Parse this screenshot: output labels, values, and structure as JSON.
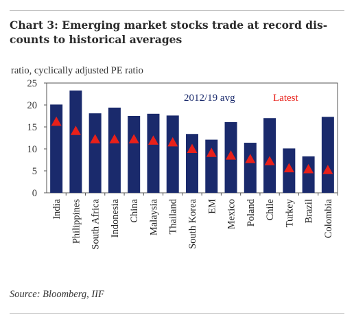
{
  "title": "Chart 3: Emerging market stocks trade at record dis- counts to historical averages",
  "title_lines": [
    "Chart 3: Emerging market stocks trade at record dis-",
    "counts to historical averages"
  ],
  "subtitle": "ratio, cyclically adjusted PE ratio",
  "source": "Source: Bloomberg, IIF",
  "chart_data": {
    "type": "bar",
    "categories": [
      "India",
      "Philippines",
      "South Africa",
      "Indonesia",
      "China",
      "Malaysia",
      "Thailand",
      "South Korea",
      "EM",
      "Mexico",
      "Poland",
      "Chile",
      "Turkey",
      "Brazil",
      "Colombia"
    ],
    "series": [
      {
        "name": "2012/19 avg",
        "type": "bar",
        "color": "#1a2a6c",
        "values": [
          20.1,
          23.3,
          18.1,
          19.4,
          17.5,
          18.0,
          17.6,
          13.4,
          12.1,
          16.1,
          11.4,
          17.0,
          10.1,
          8.3,
          17.3
        ]
      },
      {
        "name": "Latest",
        "type": "marker",
        "marker": "triangle",
        "color": "#e8201a",
        "values": [
          16.2,
          14.1,
          12.2,
          12.2,
          12.2,
          11.9,
          11.5,
          10.0,
          9.1,
          8.5,
          7.7,
          7.2,
          5.6,
          5.4,
          5.2
        ]
      }
    ],
    "ylim": [
      0,
      25
    ],
    "yticks": [
      0,
      5,
      10,
      15,
      20,
      25
    ],
    "xlabel": "",
    "ylabel": "",
    "legend_position": "top-right",
    "grid": false
  }
}
